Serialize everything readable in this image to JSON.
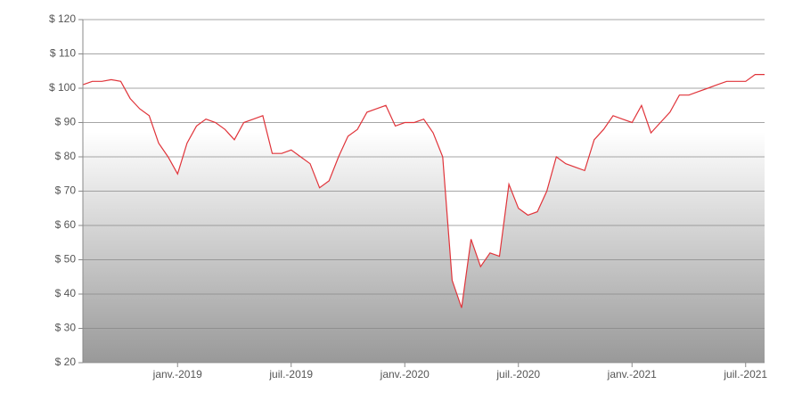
{
  "chart_data": {
    "type": "line",
    "categories": [
      null,
      null,
      null,
      null,
      null,
      null,
      null,
      null,
      null,
      null,
      "janv.-2019",
      null,
      null,
      null,
      null,
      null,
      null,
      null,
      null,
      null,
      null,
      null,
      "juil.-2019",
      null,
      null,
      null,
      null,
      null,
      null,
      null,
      null,
      null,
      null,
      null,
      "janv.-2020",
      null,
      null,
      null,
      null,
      null,
      null,
      null,
      null,
      null,
      null,
      null,
      "juil.-2020",
      null,
      null,
      null,
      null,
      null,
      null,
      null,
      null,
      null,
      null,
      null,
      "janv.-2021",
      null,
      null,
      null,
      null,
      null,
      null,
      null,
      null,
      null,
      null,
      null,
      "juil.-2021",
      null,
      null
    ],
    "series": [
      {
        "color": "#e0343a",
        "values": [
          101,
          102,
          102,
          102.5,
          102,
          97,
          94,
          92,
          84,
          80,
          75,
          84,
          89,
          91,
          90,
          88,
          85,
          90,
          91,
          92,
          81,
          81,
          82,
          80,
          78,
          71,
          73,
          80,
          86,
          88,
          93,
          94,
          95,
          89,
          90,
          90,
          91,
          87,
          80,
          44,
          36,
          56,
          48,
          52,
          51,
          72,
          65,
          63,
          64,
          70,
          80,
          78,
          77,
          76,
          85,
          88,
          92,
          91,
          90,
          95,
          87,
          90,
          93,
          98,
          98,
          99,
          100,
          101,
          102,
          102,
          102,
          104,
          104
        ]
      }
    ],
    "ylim": [
      20,
      120
    ],
    "yticks": [
      {
        "value": 20,
        "label": "$ 20"
      },
      {
        "value": 30,
        "label": "$ 30"
      },
      {
        "value": 40,
        "label": "$ 40"
      },
      {
        "value": 50,
        "label": "$ 50"
      },
      {
        "value": 60,
        "label": "$ 60"
      },
      {
        "value": 70,
        "label": "$ 70"
      },
      {
        "value": 80,
        "label": "$ 80"
      },
      {
        "value": 90,
        "label": "$ 90"
      },
      {
        "value": 100,
        "label": "$ 100"
      },
      {
        "value": 110,
        "label": "$ 110"
      },
      {
        "value": 120,
        "label": "$ 120"
      }
    ],
    "grid": true,
    "area_gradient": [
      "#ffffff",
      "#999999"
    ]
  }
}
